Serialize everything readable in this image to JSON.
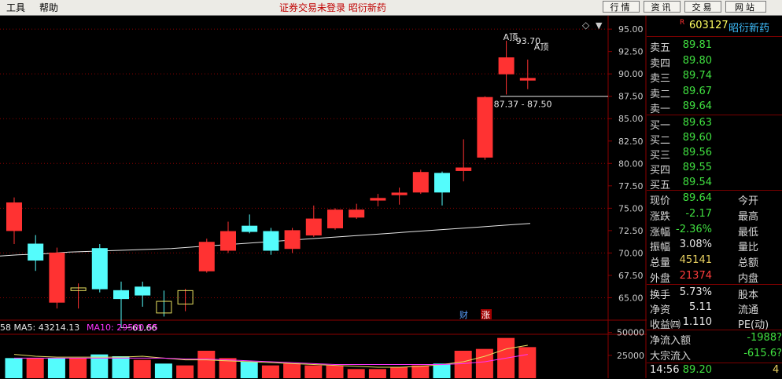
{
  "menu": {
    "tools": "工具",
    "help": "帮助"
  },
  "status_text": "证券交易未登录 昭衍新药",
  "top_buttons": [
    "行情",
    "资讯",
    "交易",
    "网站"
  ],
  "stock": {
    "flag": "R",
    "code": "603127",
    "name": "昭衍新药"
  },
  "asks": [
    {
      "label": "卖五",
      "price": "89.81"
    },
    {
      "label": "卖四",
      "price": "89.80"
    },
    {
      "label": "卖三",
      "price": "89.74"
    },
    {
      "label": "卖二",
      "price": "89.67"
    },
    {
      "label": "卖一",
      "price": "89.64"
    }
  ],
  "bids": [
    {
      "label": "买一",
      "price": "89.63"
    },
    {
      "label": "买二",
      "price": "89.60"
    },
    {
      "label": "买三",
      "price": "89.56"
    },
    {
      "label": "买四",
      "price": "89.55"
    },
    {
      "label": "买五",
      "price": "89.54"
    }
  ],
  "stats": [
    {
      "l1": "现价",
      "v1": "89.64",
      "c1": "green",
      "l2": "今开"
    },
    {
      "l1": "涨跌",
      "v1": "-2.17",
      "c1": "green",
      "l2": "最高"
    },
    {
      "l1": "涨幅",
      "v1": "-2.36%",
      "c1": "green",
      "l2": "最低"
    },
    {
      "l1": "振幅",
      "v1": "3.08%",
      "c1": "white",
      "l2": "量比"
    },
    {
      "l1": "总量",
      "v1": "45141",
      "c1": "yellow",
      "l2": "总额"
    },
    {
      "l1": "外盘",
      "v1": "21374",
      "c1": "red",
      "l2": "内盘"
    }
  ],
  "stats2": [
    {
      "l1": "换手",
      "v1": "5.73%",
      "l2": "股本"
    },
    {
      "l1": "净资",
      "v1": "5.11",
      "l2": "流通"
    },
    {
      "l1": "收益㈣",
      "v1": "1.110",
      "l2": "PE(动)"
    }
  ],
  "flow": [
    {
      "label": "净流入额",
      "value": "-1988?",
      "color": "green"
    },
    {
      "label": "大宗流入",
      "value": "-615.6?",
      "color": "green"
    }
  ],
  "tick": {
    "time": "14:56",
    "price": "89.20",
    "extra": "4"
  },
  "indicator": {
    "ma_text": "58  MA5: 43214.13",
    "ma10_text": "MA10: 29500.55"
  },
  "markers": {
    "cai": "财",
    "zhang": "涨"
  },
  "diamond": "◇",
  "chart_data": {
    "type": "candlestick",
    "y_ticks": [
      95.0,
      92.5,
      90.0,
      87.5,
      85.0,
      82.5,
      80.0,
      77.5,
      75.0,
      72.5,
      70.0,
      67.5,
      65.0
    ],
    "ylim": [
      62.5,
      96.5
    ],
    "annotations": [
      {
        "text": "A顶",
        "price": 95.0,
        "candle": 23
      },
      {
        "text": "93.70",
        "price": 93.7,
        "candle": 23
      },
      {
        "text": "A顶",
        "price": 91.8,
        "candle": 24
      },
      {
        "text": "87.37 - 87.50",
        "price": 87.5,
        "candle": 23
      },
      {
        "text": "61.66",
        "price": 61.66,
        "candle": 5
      }
    ],
    "candles": [
      {
        "o": 72.5,
        "c": 75.6,
        "h": 76.2,
        "l": 71.0
      },
      {
        "o": 71.0,
        "c": 69.2,
        "h": 72.0,
        "l": 68.0
      },
      {
        "o": 64.5,
        "c": 70.0,
        "h": 70.6,
        "l": 63.8
      },
      {
        "o": 65.8,
        "c": 66.1,
        "h": 66.6,
        "l": 63.8
      },
      {
        "o": 70.5,
        "c": 66.0,
        "h": 71.0,
        "l": 65.6
      },
      {
        "o": 65.8,
        "c": 64.9,
        "h": 66.8,
        "l": 61.66
      },
      {
        "o": 66.2,
        "c": 65.3,
        "h": 66.8,
        "l": 64.0
      },
      {
        "o": 64.6,
        "c": 63.3,
        "h": 65.8,
        "l": 62.9
      },
      {
        "o": 64.3,
        "c": 65.8,
        "h": 66.0,
        "l": 63.5
      },
      {
        "o": 68.0,
        "c": 71.2,
        "h": 71.6,
        "l": 67.8
      },
      {
        "o": 70.3,
        "c": 72.4,
        "h": 73.5,
        "l": 70.0
      },
      {
        "o": 73.0,
        "c": 72.4,
        "h": 74.3,
        "l": 72.2
      },
      {
        "o": 72.4,
        "c": 70.3,
        "h": 72.8,
        "l": 69.8
      },
      {
        "o": 70.5,
        "c": 72.5,
        "h": 72.8,
        "l": 70.0
      },
      {
        "o": 72.0,
        "c": 73.8,
        "h": 75.3,
        "l": 71.8
      },
      {
        "o": 72.8,
        "c": 74.8,
        "h": 75.0,
        "l": 72.6
      },
      {
        "o": 74.0,
        "c": 74.8,
        "h": 75.5,
        "l": 73.8
      },
      {
        "o": 75.9,
        "c": 76.1,
        "h": 76.6,
        "l": 75.2
      },
      {
        "o": 76.5,
        "c": 76.7,
        "h": 77.3,
        "l": 75.4
      },
      {
        "o": 76.8,
        "c": 79.0,
        "h": 79.3,
        "l": 76.6
      },
      {
        "o": 78.9,
        "c": 76.8,
        "h": 79.1,
        "l": 75.3
      },
      {
        "o": 79.2,
        "c": 79.5,
        "h": 82.7,
        "l": 78.0
      },
      {
        "o": 80.7,
        "c": 87.37,
        "h": 87.5,
        "l": 80.4
      },
      {
        "o": 90.0,
        "c": 91.8,
        "h": 93.7,
        "l": 87.7
      },
      {
        "o": 89.3,
        "c": 89.5,
        "h": 91.6,
        "l": 88.3
      }
    ],
    "ma_line": [
      69.6,
      69.8,
      69.9,
      70.1,
      70.2,
      70.3,
      70.4,
      70.5,
      70.7,
      70.9,
      71.1,
      71.3,
      71.5,
      71.7,
      71.9,
      72.1,
      72.3,
      72.5,
      72.7,
      72.9,
      73.1,
      73.3
    ],
    "volume_ticks": [
      50000,
      25000
    ],
    "volume": [
      {
        "v": 22000,
        "up": false
      },
      {
        "v": 22000,
        "up": true
      },
      {
        "v": 22000,
        "up": false
      },
      {
        "v": 22000,
        "up": true
      },
      {
        "v": 26000,
        "up": false
      },
      {
        "v": 24000,
        "up": false
      },
      {
        "v": 20000,
        "up": true
      },
      {
        "v": 16000,
        "up": false
      },
      {
        "v": 14000,
        "up": true
      },
      {
        "v": 30000,
        "up": true
      },
      {
        "v": 22000,
        "up": true
      },
      {
        "v": 18000,
        "up": false
      },
      {
        "v": 14000,
        "up": true
      },
      {
        "v": 16000,
        "up": true
      },
      {
        "v": 14000,
        "up": true
      },
      {
        "v": 14000,
        "up": true
      },
      {
        "v": 10000,
        "up": true
      },
      {
        "v": 10000,
        "up": true
      },
      {
        "v": 12000,
        "up": true
      },
      {
        "v": 14000,
        "up": true
      },
      {
        "v": 16000,
        "up": false
      },
      {
        "v": 30000,
        "up": true
      },
      {
        "v": 32000,
        "up": true
      },
      {
        "v": 44000,
        "up": true
      },
      {
        "v": 34000,
        "up": true
      }
    ],
    "colors": {
      "up": "#ff3232",
      "down": "#54fcfc",
      "ma": "#e8e8e8",
      "ma5": "#ffffff",
      "ma10": "#ff33ff",
      "grid": "#8b0000"
    }
  }
}
